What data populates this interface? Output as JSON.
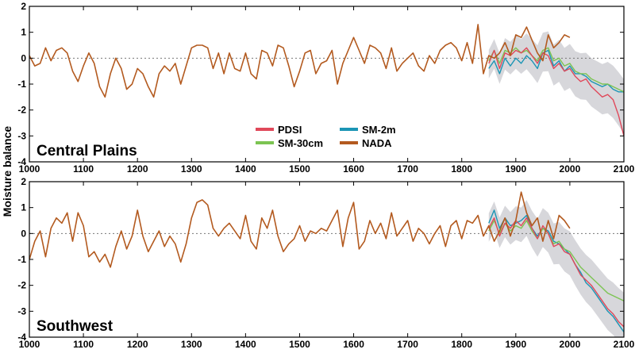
{
  "figure": {
    "ylabel": "Moisture balance",
    "legend": [
      {
        "name": "PDSI",
        "color": "#e0485a"
      },
      {
        "name": "SM-2m",
        "color": "#1b95b5"
      },
      {
        "name": "SM-30cm",
        "color": "#7cc452"
      },
      {
        "name": "NADA",
        "color": "#b35a1f"
      }
    ],
    "band_color": "#c9c9cf",
    "zero_line_color": "#777777"
  },
  "chart_data": [
    {
      "type": "line",
      "panel_label": "Central Plains",
      "xlim": [
        1000,
        2100
      ],
      "ylim": [
        -4,
        2
      ],
      "xticks": [
        1000,
        1100,
        1200,
        1300,
        1400,
        1500,
        1600,
        1700,
        1800,
        1900,
        2000,
        2100
      ],
      "yticks": [
        -4,
        -3,
        -2,
        -1,
        0,
        1,
        2
      ],
      "ylabel": "Moisture balance",
      "series": [
        {
          "name": "NADA",
          "x": [
            1000,
            1010,
            1020,
            1030,
            1040,
            1050,
            1060,
            1070,
            1080,
            1090,
            1100,
            1110,
            1120,
            1130,
            1140,
            1150,
            1160,
            1170,
            1180,
            1190,
            1200,
            1210,
            1220,
            1230,
            1240,
            1250,
            1260,
            1270,
            1280,
            1290,
            1300,
            1310,
            1320,
            1330,
            1340,
            1350,
            1360,
            1370,
            1380,
            1390,
            1400,
            1410,
            1420,
            1430,
            1440,
            1450,
            1460,
            1470,
            1480,
            1490,
            1500,
            1510,
            1520,
            1530,
            1540,
            1550,
            1560,
            1570,
            1580,
            1590,
            1600,
            1610,
            1620,
            1630,
            1640,
            1650,
            1660,
            1670,
            1680,
            1690,
            1700,
            1710,
            1720,
            1730,
            1740,
            1750,
            1760,
            1770,
            1780,
            1790,
            1800,
            1810,
            1820,
            1830,
            1840,
            1850,
            1860,
            1870,
            1880,
            1890,
            1900,
            1910,
            1920,
            1930,
            1940,
            1950,
            1960,
            1970,
            1980,
            1990,
            2000
          ],
          "values": [
            0.1,
            -0.3,
            -0.2,
            0.4,
            -0.1,
            0.3,
            0.4,
            0.2,
            -0.5,
            -0.9,
            -0.3,
            0.2,
            -0.2,
            -1.1,
            -1.5,
            -0.6,
            0.0,
            -0.4,
            -1.2,
            -1.0,
            -0.4,
            -0.6,
            -1.1,
            -1.5,
            -0.6,
            -0.3,
            -0.5,
            -0.2,
            -1.0,
            -0.3,
            0.4,
            0.5,
            0.5,
            0.4,
            -0.4,
            0.2,
            -0.6,
            0.2,
            -0.4,
            -0.5,
            0.2,
            -0.6,
            -0.8,
            0.3,
            0.2,
            -0.3,
            0.5,
            0.4,
            -0.3,
            -1.1,
            -0.5,
            0.2,
            0.3,
            -0.6,
            -0.2,
            -0.1,
            0.3,
            -1.0,
            -0.2,
            0.3,
            0.8,
            0.3,
            -0.2,
            0.5,
            0.4,
            0.2,
            -0.4,
            0.4,
            -0.5,
            -0.2,
            0.0,
            0.2,
            -0.3,
            -0.5,
            0.1,
            -0.2,
            0.3,
            0.5,
            0.6,
            0.4,
            -0.1,
            0.6,
            -0.2,
            1.3,
            -0.6,
            0.1,
            0.0,
            0.2,
            0.6,
            0.1,
            0.9,
            0.8,
            1.2,
            0.7,
            0.2,
            -0.1,
            0.9,
            0.4,
            0.6,
            0.9,
            0.8
          ]
        },
        {
          "name": "PDSI",
          "x": [
            1850,
            1860,
            1870,
            1880,
            1890,
            1900,
            1910,
            1920,
            1930,
            1940,
            1950,
            1960,
            1970,
            1980,
            1990,
            2000,
            2010,
            2020,
            2030,
            2040,
            2050,
            2060,
            2070,
            2080,
            2090,
            2100
          ],
          "values": [
            -0.2,
            0.3,
            -0.4,
            0.2,
            0.1,
            0.3,
            0.2,
            0.4,
            0.1,
            -0.2,
            0.2,
            0.1,
            -0.4,
            -0.2,
            -0.5,
            -0.4,
            -0.7,
            -0.9,
            -0.8,
            -1.1,
            -1.3,
            -1.5,
            -1.4,
            -1.6,
            -2.2,
            -3.0
          ]
        },
        {
          "name": "SM-2m",
          "x": [
            1850,
            1860,
            1870,
            1880,
            1890,
            1900,
            1910,
            1920,
            1930,
            1940,
            1950,
            1960,
            1970,
            1980,
            1990,
            2000,
            2010,
            2020,
            2030,
            2040,
            2050,
            2060,
            2070,
            2080,
            2090,
            2100
          ],
          "values": [
            -0.4,
            -0.1,
            -0.6,
            0.0,
            -0.3,
            0.0,
            -0.2,
            0.1,
            -0.1,
            -0.4,
            0.2,
            0.3,
            -0.3,
            -0.1,
            -0.5,
            -0.3,
            -0.6,
            -0.6,
            -0.7,
            -0.9,
            -1.0,
            -1.1,
            -1.0,
            -1.2,
            -1.3,
            -1.3
          ]
        },
        {
          "name": "SM-30cm",
          "x": [
            1850,
            1860,
            1870,
            1880,
            1890,
            1900,
            1910,
            1920,
            1930,
            1940,
            1950,
            1960,
            1970,
            1980,
            1990,
            2000,
            2010,
            2020,
            2030,
            2040,
            2050,
            2060,
            2070,
            2080,
            2090,
            2100
          ],
          "values": [
            -0.1,
            0.3,
            -0.2,
            0.3,
            0.2,
            0.4,
            0.2,
            0.3,
            0.1,
            -0.1,
            0.3,
            0.4,
            -0.1,
            0.0,
            -0.3,
            -0.2,
            -0.5,
            -0.6,
            -0.6,
            -0.8,
            -0.9,
            -1.0,
            -1.0,
            -1.1,
            -1.2,
            -1.3
          ]
        }
      ]
    },
    {
      "type": "line",
      "panel_label": "Southwest",
      "xlim": [
        1000,
        2100
      ],
      "ylim": [
        -4,
        2
      ],
      "xticks": [
        1000,
        1100,
        1200,
        1300,
        1400,
        1500,
        1600,
        1700,
        1800,
        1900,
        2000,
        2100
      ],
      "yticks": [
        -4,
        -3,
        -2,
        -1,
        0,
        1,
        2
      ],
      "series": [
        {
          "name": "NADA",
          "x": [
            1000,
            1010,
            1020,
            1030,
            1040,
            1050,
            1060,
            1070,
            1080,
            1090,
            1100,
            1110,
            1120,
            1130,
            1140,
            1150,
            1160,
            1170,
            1180,
            1190,
            1200,
            1210,
            1220,
            1230,
            1240,
            1250,
            1260,
            1270,
            1280,
            1290,
            1300,
            1310,
            1320,
            1330,
            1340,
            1350,
            1360,
            1370,
            1380,
            1390,
            1400,
            1410,
            1420,
            1430,
            1440,
            1450,
            1460,
            1470,
            1480,
            1490,
            1500,
            1510,
            1520,
            1530,
            1540,
            1550,
            1560,
            1570,
            1580,
            1590,
            1600,
            1610,
            1620,
            1630,
            1640,
            1650,
            1660,
            1670,
            1680,
            1690,
            1700,
            1710,
            1720,
            1730,
            1740,
            1750,
            1760,
            1770,
            1780,
            1790,
            1800,
            1810,
            1820,
            1830,
            1840,
            1850,
            1860,
            1870,
            1880,
            1890,
            1900,
            1910,
            1920,
            1930,
            1940,
            1950,
            1960,
            1970,
            1980,
            1990,
            2000
          ],
          "values": [
            -1.0,
            -0.3,
            0.1,
            -0.9,
            0.2,
            0.6,
            0.4,
            0.8,
            -0.3,
            0.8,
            0.3,
            -0.9,
            -0.7,
            -1.1,
            -0.8,
            -1.3,
            -0.5,
            0.1,
            -0.6,
            -0.1,
            0.9,
            -0.1,
            -0.7,
            -0.3,
            0.1,
            -0.5,
            -0.1,
            -0.4,
            -1.1,
            -0.4,
            0.6,
            1.2,
            1.3,
            1.1,
            0.2,
            -0.1,
            0.2,
            0.4,
            0.1,
            -0.2,
            0.7,
            -0.3,
            -0.6,
            0.6,
            0.2,
            0.9,
            -0.1,
            -0.7,
            -0.4,
            -0.2,
            0.3,
            -0.3,
            0.1,
            0.0,
            0.2,
            0.1,
            0.5,
            0.9,
            -0.5,
            0.6,
            1.2,
            -0.6,
            -0.3,
            0.5,
            0.0,
            0.4,
            -0.2,
            0.8,
            -0.1,
            0.2,
            0.5,
            -0.3,
            0.2,
            0.0,
            -0.4,
            0.0,
            0.3,
            -0.5,
            0.3,
            0.5,
            -0.2,
            0.5,
            0.4,
            0.7,
            -0.1,
            0.3,
            -0.3,
            0.1,
            0.6,
            -0.1,
            0.5,
            1.6,
            0.8,
            0.3,
            0.6,
            -0.3,
            0.5,
            -0.2,
            0.7,
            0.5,
            0.2
          ]
        },
        {
          "name": "PDSI",
          "x": [
            1850,
            1860,
            1870,
            1880,
            1890,
            1900,
            1910,
            1920,
            1930,
            1940,
            1950,
            1960,
            1970,
            1980,
            1990,
            2000,
            2010,
            2020,
            2030,
            2040,
            2050,
            2060,
            2070,
            2080,
            2090,
            2100
          ],
          "values": [
            0.2,
            0.6,
            -0.1,
            0.4,
            0.2,
            0.5,
            0.3,
            0.6,
            0.2,
            -0.2,
            0.3,
            0.0,
            -0.5,
            -0.4,
            -0.7,
            -0.8,
            -1.2,
            -1.6,
            -1.8,
            -2.0,
            -2.3,
            -2.6,
            -2.9,
            -3.1,
            -3.4,
            -3.6
          ]
        },
        {
          "name": "SM-2m",
          "x": [
            1850,
            1860,
            1870,
            1880,
            1890,
            1900,
            1910,
            1920,
            1930,
            1940,
            1950,
            1960,
            1970,
            1980,
            1990,
            2000,
            2010,
            2020,
            2030,
            2040,
            2050,
            2060,
            2070,
            2080,
            2090,
            2100
          ],
          "values": [
            0.4,
            0.9,
            0.2,
            0.6,
            0.3,
            0.4,
            0.5,
            0.7,
            0.2,
            -0.1,
            0.2,
            0.1,
            -0.3,
            -0.4,
            -0.6,
            -0.8,
            -1.2,
            -1.5,
            -1.9,
            -2.1,
            -2.4,
            -2.7,
            -3.0,
            -3.2,
            -3.5,
            -3.8
          ]
        },
        {
          "name": "SM-30cm",
          "x": [
            1850,
            1860,
            1870,
            1880,
            1890,
            1900,
            1910,
            1920,
            1930,
            1940,
            1950,
            1960,
            1970,
            1980,
            1990,
            2000,
            2010,
            2020,
            2030,
            2040,
            2050,
            2060,
            2070,
            2080,
            2090,
            2100
          ],
          "values": [
            0.1,
            0.5,
            0.0,
            0.4,
            0.1,
            0.3,
            0.2,
            0.5,
            0.1,
            -0.2,
            0.2,
            0.0,
            -0.4,
            -0.3,
            -0.6,
            -0.7,
            -1.0,
            -1.3,
            -1.5,
            -1.7,
            -1.9,
            -2.1,
            -2.3,
            -2.4,
            -2.5,
            -2.6
          ]
        }
      ]
    }
  ]
}
